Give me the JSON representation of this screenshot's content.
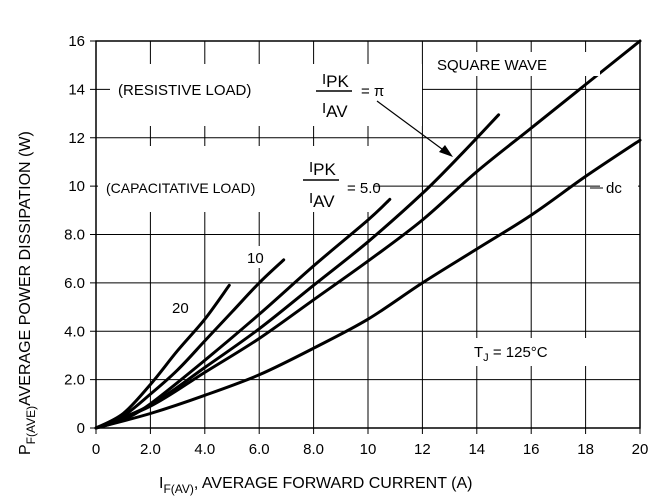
{
  "chart_data": {
    "type": "line",
    "xlabel": {
      "main": "I",
      "sub": "F(AV)",
      "rest": ", AVERAGE FORWARD CURRENT (A)"
    },
    "ylabel": {
      "main": "P",
      "sub": "F(AVE)",
      "rest": "AVERAGE POWER DISSIPATION (W)"
    },
    "xlim": [
      0,
      20
    ],
    "ylim": [
      0,
      16
    ],
    "xticks": [
      {
        "v": 0,
        "label": "0"
      },
      {
        "v": 2,
        "label": "2.0"
      },
      {
        "v": 4,
        "label": "4.0"
      },
      {
        "v": 6,
        "label": "6.0"
      },
      {
        "v": 8,
        "label": "8.0"
      },
      {
        "v": 10,
        "label": "10"
      },
      {
        "v": 12,
        "label": "12"
      },
      {
        "v": 14,
        "label": "14"
      },
      {
        "v": 16,
        "label": "16"
      },
      {
        "v": 18,
        "label": "18"
      },
      {
        "v": 20,
        "label": "20"
      }
    ],
    "yticks": [
      {
        "v": 0,
        "label": "0"
      },
      {
        "v": 2,
        "label": "2.0"
      },
      {
        "v": 4,
        "label": "4.0"
      },
      {
        "v": 6,
        "label": "6.0"
      },
      {
        "v": 8,
        "label": "8.0"
      },
      {
        "v": 10,
        "label": "10"
      },
      {
        "v": 12,
        "label": "12"
      },
      {
        "v": 14,
        "label": "14"
      },
      {
        "v": 16,
        "label": "16"
      }
    ],
    "grid": true,
    "series": [
      {
        "key": "ratio20",
        "name": "20",
        "points": [
          [
            0,
            0
          ],
          [
            1,
            0.6
          ],
          [
            2,
            1.8
          ],
          [
            3,
            3.2
          ],
          [
            4,
            4.5
          ],
          [
            4.9,
            5.9
          ]
        ]
      },
      {
        "key": "ratio10",
        "name": "10",
        "points": [
          [
            0,
            0
          ],
          [
            1,
            0.5
          ],
          [
            2,
            1.4
          ],
          [
            3,
            2.4
          ],
          [
            4,
            3.6
          ],
          [
            5,
            4.8
          ],
          [
            6,
            6.0
          ],
          [
            6.9,
            6.95
          ]
        ]
      },
      {
        "key": "ratio5",
        "name": "5.0",
        "points": [
          [
            0,
            0
          ],
          [
            1,
            0.35
          ],
          [
            2,
            1.0
          ],
          [
            4,
            2.8
          ],
          [
            6,
            4.7
          ],
          [
            8,
            6.7
          ],
          [
            10,
            8.6
          ],
          [
            10.8,
            9.45
          ]
        ]
      },
      {
        "key": "square",
        "name": "SQUARE WAVE",
        "points": [
          [
            0,
            0
          ],
          [
            2,
            0.9
          ],
          [
            4,
            2.3
          ],
          [
            6,
            3.7
          ],
          [
            8,
            5.3
          ],
          [
            10,
            6.9
          ],
          [
            12,
            8.6
          ],
          [
            14,
            10.6
          ],
          [
            16,
            12.4
          ],
          [
            18,
            14.2
          ],
          [
            20,
            16.0
          ]
        ]
      },
      {
        "key": "resistive",
        "name": "π",
        "points": [
          [
            0,
            0
          ],
          [
            2,
            0.95
          ],
          [
            4,
            2.5
          ],
          [
            6,
            4.1
          ],
          [
            8,
            5.9
          ],
          [
            10,
            7.7
          ],
          [
            12,
            9.7
          ],
          [
            13.5,
            11.4
          ],
          [
            14.8,
            12.95
          ]
        ]
      },
      {
        "key": "dc",
        "name": "dc",
        "points": [
          [
            0,
            0
          ],
          [
            2,
            0.6
          ],
          [
            4,
            1.35
          ],
          [
            6,
            2.2
          ],
          [
            8,
            3.3
          ],
          [
            10,
            4.5
          ],
          [
            12,
            6.0
          ],
          [
            14,
            7.4
          ],
          [
            16,
            8.8
          ],
          [
            18,
            10.4
          ],
          [
            20,
            11.9
          ]
        ]
      }
    ],
    "annotations": {
      "square_wave": "SQUARE WAVE",
      "resistive_prefix": "(RESISTIVE LOAD)",
      "resistive_num": "I",
      "resistive_num_sub": "PK",
      "resistive_den": "I",
      "resistive_den_sub": "AV",
      "resistive_eq": "= π",
      "capacitive_prefix": "(CAPACITATIVE LOAD)",
      "capacitive_num": "I",
      "capacitive_num_sub": "PK",
      "capacitive_den": "I",
      "capacitive_den_sub": "AV",
      "capacitive_eq": "= 5.0",
      "dc": "dc",
      "ten": "10",
      "twenty": "20",
      "tj_main": "T",
      "tj_sub": "J",
      "tj_rest": " = 125°C"
    }
  }
}
